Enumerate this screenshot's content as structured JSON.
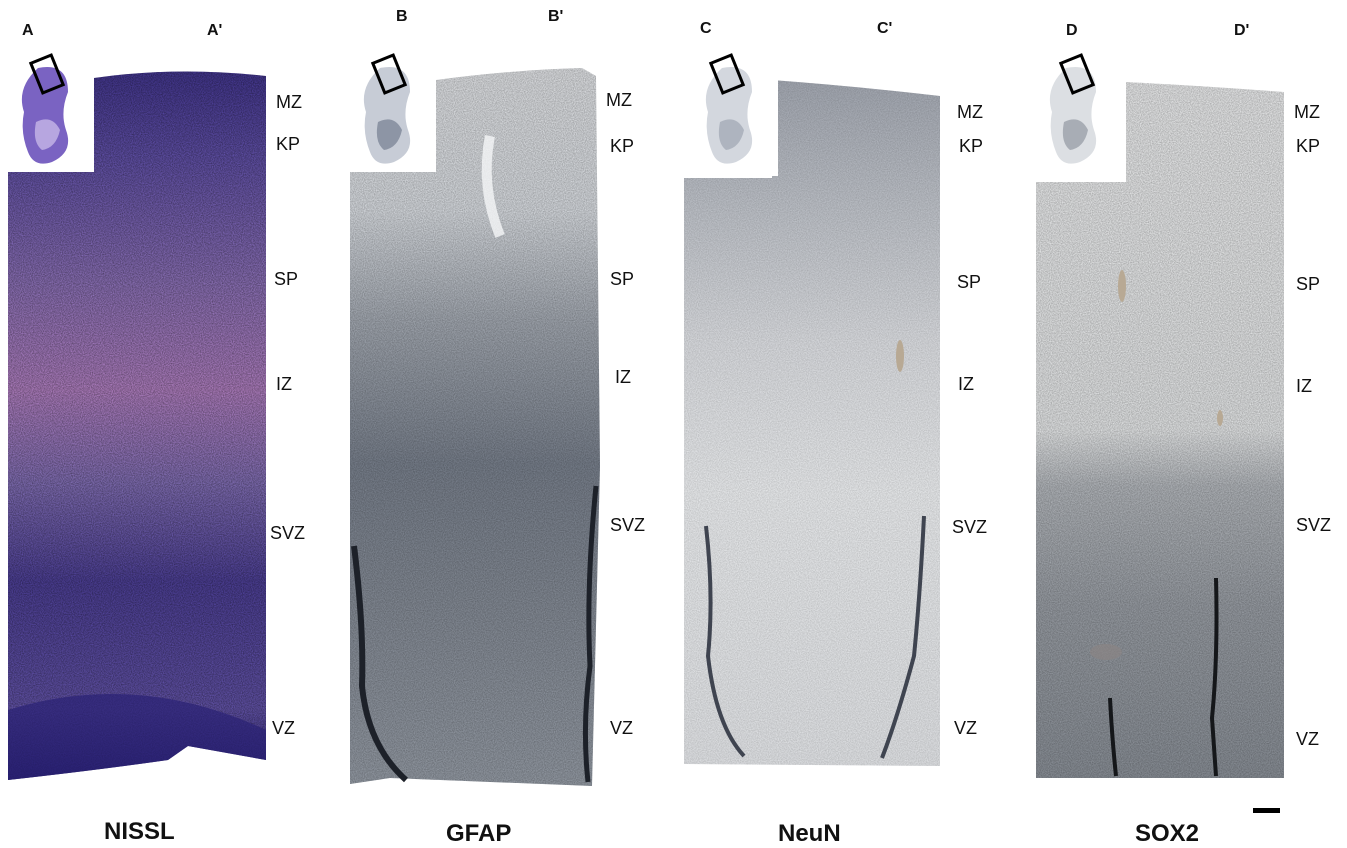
{
  "panels": [
    {
      "id": "A",
      "id_prime": "A'",
      "stain": "NISSL"
    },
    {
      "id": "B",
      "id_prime": "B'",
      "stain": "GFAP"
    },
    {
      "id": "C",
      "id_prime": "C'",
      "stain": "NeuN"
    },
    {
      "id": "D",
      "id_prime": "D'",
      "stain": "SOX2"
    }
  ],
  "layers": {
    "mz": "MZ",
    "kp": "KP",
    "sp": "SP",
    "iz": "IZ",
    "svz": "SVZ",
    "vz": "VZ"
  },
  "colors": {
    "nissl_dark": "#3b2f8c",
    "nissl_mid": "#6a58b8",
    "nissl_pink": "#c98fd6",
    "gfap_light": "#eef0f3",
    "gfap_dark": "#3d4452",
    "neun_light": "#f6f7f9",
    "neun_gray": "#8a8f99",
    "sox2_light": "#fafafa",
    "sox2_dark": "#2a2a2a"
  }
}
